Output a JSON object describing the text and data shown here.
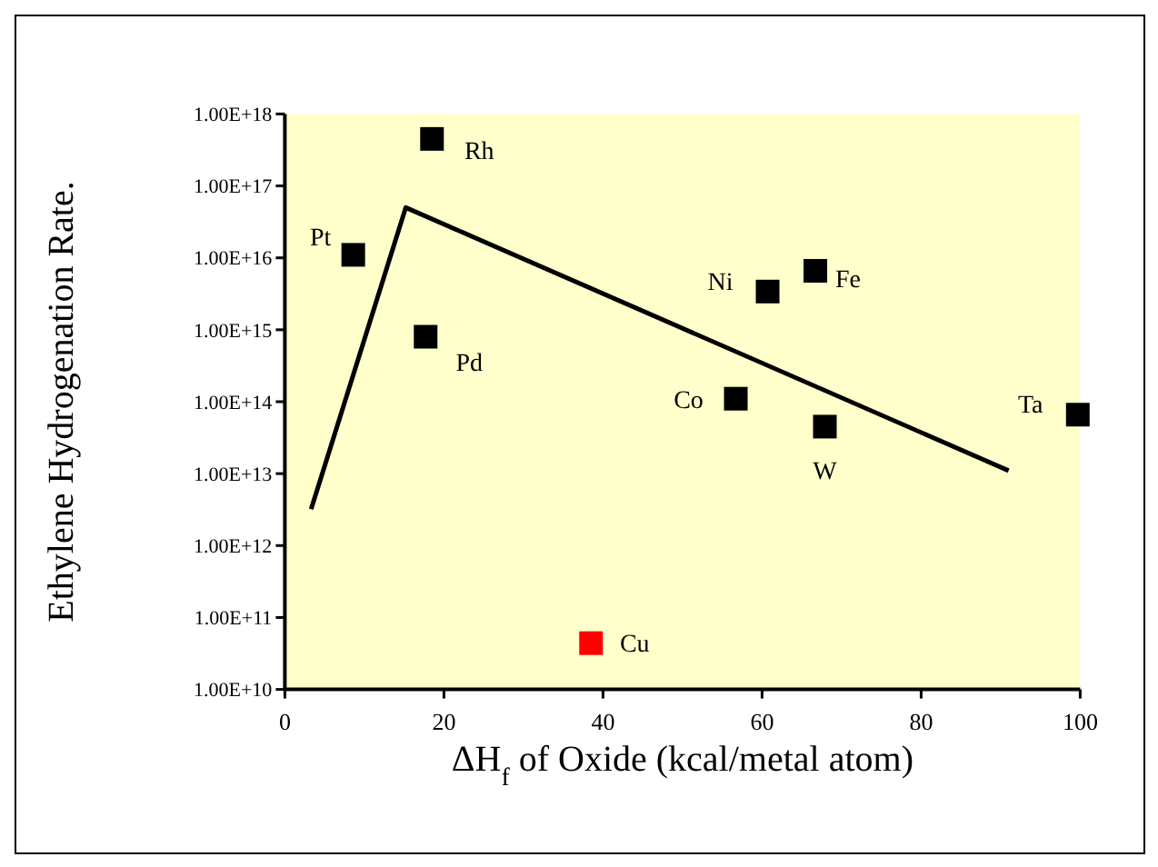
{
  "chart_data": {
    "type": "scatter",
    "ylabel": "Ethylene Hydrogenation Rate.",
    "xlabel": "ΔH$_{f}$ of Oxide (kcal/metal atom)",
    "xlim": [
      0,
      100
    ],
    "xticks": [
      0,
      20,
      40,
      60,
      80,
      100
    ],
    "ylim": [
      10000000000.0,
      1e+18
    ],
    "yticks": [
      {
        "value": 10000000000.0,
        "label": "1.00E+10"
      },
      {
        "value": 100000000000.0,
        "label": "1.00E+11"
      },
      {
        "value": 1000000000000.0,
        "label": "1.00E+12"
      },
      {
        "value": 10000000000000.0,
        "label": "1.00E+13"
      },
      {
        "value": 100000000000000.0,
        "label": "1.00E+14"
      },
      {
        "value": 1000000000000000.0,
        "label": "1.00E+15"
      },
      {
        "value": 1e+16,
        "label": "1.00E+16"
      },
      {
        "value": 1e+17,
        "label": "1.00E+17"
      },
      {
        "value": 1e+18,
        "label": "1.00E+18"
      }
    ],
    "log": true,
    "grid": false,
    "marker": "square",
    "series": [
      {
        "x": [
          18.5,
          8.6,
          17.7,
          60.7,
          66.7,
          56.7,
          67.9,
          99.7,
          38.5
        ],
        "values": [
          4.5e+17,
          1.1e+16,
          800000000000000.0,
          3400000000000000.0,
          6600000000000000.0,
          110000000000000.0,
          45000000000000.0,
          66000000000000.0,
          44000000000.0
        ],
        "colors": [
          "#000000",
          "#000000",
          "#000000",
          "#000000",
          "#000000",
          "#000000",
          "#000000",
          "#000000",
          "#ff0000"
        ]
      },
      {
        "type": "line",
        "x": [
          3.3,
          15.2,
          91
        ],
        "values": [
          3200000000000.0,
          5e+16,
          11000000000000.0
        ],
        "color": "#000000",
        "marker": "none",
        "line_style": "solid"
      }
    ],
    "annotations": [
      {
        "text": "Rh",
        "x": 18.5,
        "y": 4.5e+17
      },
      {
        "text": "Pt",
        "x": 8.6,
        "y": 1.1e+16
      },
      {
        "text": "Pd",
        "x": 17.7,
        "y": 800000000000000.0
      },
      {
        "text": "Ni",
        "x": 60.7,
        "y": 3400000000000000.0
      },
      {
        "text": "Fe",
        "x": 66.7,
        "y": 6600000000000000.0
      },
      {
        "text": "Co",
        "x": 56.7,
        "y": 110000000000000.0
      },
      {
        "text": "W",
        "x": 67.9,
        "y": 45000000000000.0
      },
      {
        "text": "Ta",
        "x": 99.7,
        "y": 66000000000000.0
      },
      {
        "text": "Cu",
        "x": 38.5,
        "y": 44000000000.0
      }
    ]
  }
}
